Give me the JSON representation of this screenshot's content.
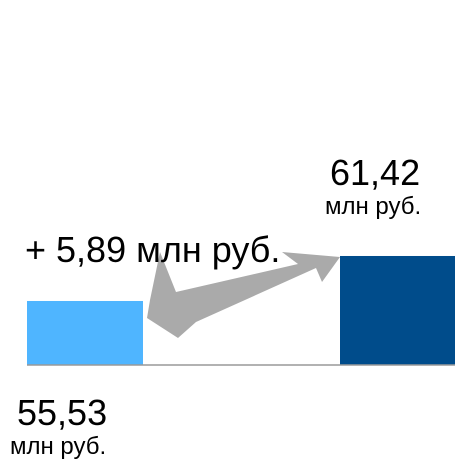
{
  "chart_data": {
    "type": "bar",
    "categories": [
      null,
      null
    ],
    "values": [
      55.53,
      61.42
    ],
    "value_labels": [
      "55,53",
      "61,42"
    ],
    "unit": "млн руб.",
    "annotation": "+ 5,89 млн руб.",
    "colors": [
      "#4fb5ff",
      "#004c8b"
    ],
    "ylim": [
      47.15,
      66
    ]
  }
}
